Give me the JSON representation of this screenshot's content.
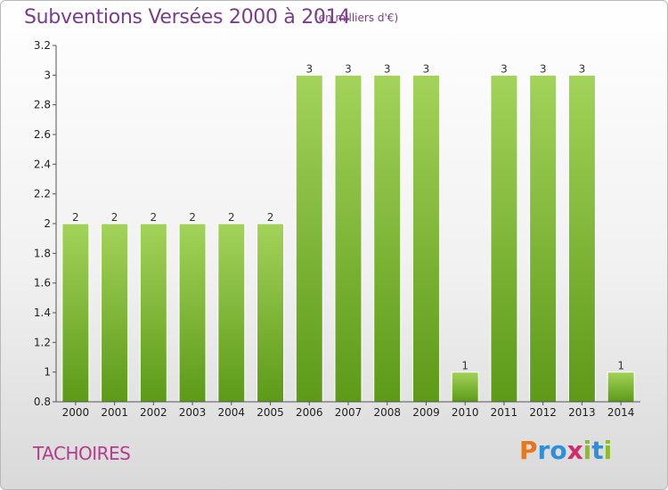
{
  "header": {
    "title": "Subventions Versées 2000 à 2014",
    "subtitle": "(en milliers d'€)"
  },
  "footer": {
    "town": "TACHOIRES",
    "logo": "Proxiti",
    "logo_colors": [
      "#e8761a",
      "#2f8fd8",
      "#2f8fd8",
      "#d22a6a",
      "#8cbc2a",
      "#2f8fd8",
      "#8cbc2a"
    ]
  },
  "chart_data": {
    "type": "bar",
    "categories": [
      "2000",
      "2001",
      "2002",
      "2003",
      "2004",
      "2005",
      "2006",
      "2007",
      "2008",
      "2009",
      "2010",
      "2011",
      "2012",
      "2013",
      "2014"
    ],
    "values": [
      2,
      2,
      2,
      2,
      2,
      2,
      3,
      3,
      3,
      3,
      1,
      3,
      3,
      3,
      1
    ],
    "value_labels": [
      "2",
      "2",
      "2",
      "2",
      "2",
      "2",
      "3",
      "3",
      "3",
      "3",
      "1",
      "3",
      "3",
      "3",
      "1"
    ],
    "title": "Subventions Versées 2000 à 2014",
    "xlabel": "",
    "ylabel": "",
    "ylim": [
      0.8,
      3.2
    ],
    "yticks": [
      "0.8",
      "1",
      "1.2",
      "1.4",
      "1.6",
      "1.8",
      "2",
      "2.2",
      "2.4",
      "2.6",
      "2.8",
      "3",
      "3.2"
    ],
    "grid": false,
    "colors": {
      "bar_light": "#a3d35a",
      "bar_dark": "#5c9a18"
    }
  }
}
